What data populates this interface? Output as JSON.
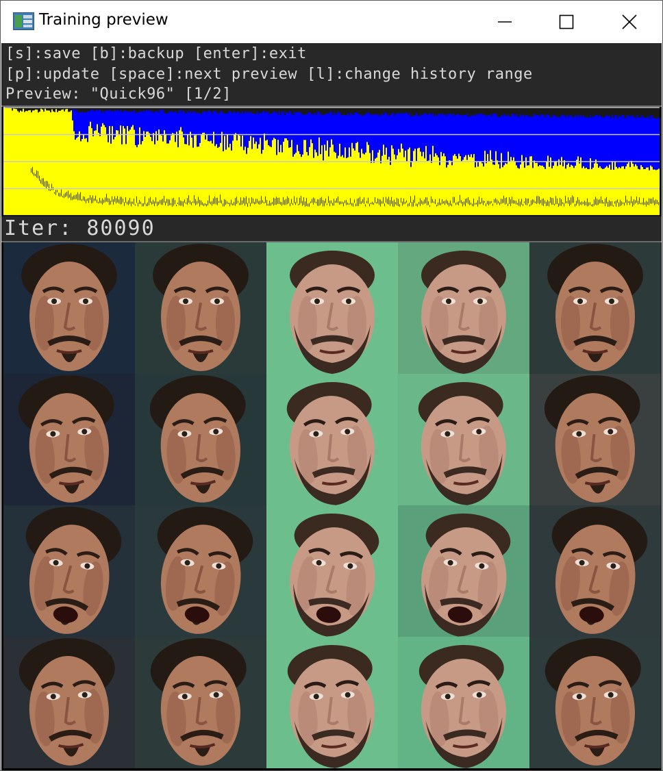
{
  "window": {
    "title": "Training preview",
    "controls": [
      "minimize-icon",
      "maximize-icon",
      "close-icon"
    ]
  },
  "help": {
    "line1": "[s]:save [b]:backup [enter]:exit",
    "line2": "[p]:update [space]:next preview [l]:change history range",
    "line3": "Preview: \"Quick96\" [1/2]"
  },
  "status": {
    "iter_label": "Iter: 80090"
  },
  "loss_graph": {
    "series_colors": {
      "src_loss": "#ffff00",
      "dst_loss": "#0000ff"
    },
    "grid_lines": 4
  },
  "preview": {
    "columns": 5,
    "rows": 4,
    "tiles": [
      {
        "subject": "A",
        "bg": "#1b2a3c",
        "type": "real"
      },
      {
        "subject": "A",
        "bg": "#2a3a38",
        "type": "recon"
      },
      {
        "subject": "B",
        "bg": "#6cbf8c",
        "type": "real"
      },
      {
        "subject": "B",
        "bg": "#64a880",
        "type": "recon"
      },
      {
        "subject": "A",
        "bg": "#2d3a3a",
        "type": "swap"
      },
      {
        "subject": "A",
        "bg": "#1c2636",
        "type": "real"
      },
      {
        "subject": "A",
        "bg": "#27383a",
        "type": "recon"
      },
      {
        "subject": "B",
        "bg": "#6cbf8c",
        "type": "real"
      },
      {
        "subject": "B",
        "bg": "#6ab88a",
        "type": "recon"
      },
      {
        "subject": "A",
        "bg": "#3a4040",
        "type": "swap"
      },
      {
        "subject": "A",
        "bg": "#24303a",
        "type": "real"
      },
      {
        "subject": "A",
        "bg": "#2a3a3c",
        "type": "recon"
      },
      {
        "subject": "B",
        "bg": "#6cbf8c",
        "type": "real"
      },
      {
        "subject": "B",
        "bg": "#5aa07a",
        "type": "recon"
      },
      {
        "subject": "A",
        "bg": "#2e3a3c",
        "type": "swap"
      },
      {
        "subject": "A",
        "bg": "#2a3036",
        "type": "real"
      },
      {
        "subject": "A",
        "bg": "#2c3a3a",
        "type": "recon"
      },
      {
        "subject": "B",
        "bg": "#6cbf8c",
        "type": "real"
      },
      {
        "subject": "B",
        "bg": "#62b486",
        "type": "recon"
      },
      {
        "subject": "A",
        "bg": "#2e3c3e",
        "type": "swap"
      }
    ]
  }
}
